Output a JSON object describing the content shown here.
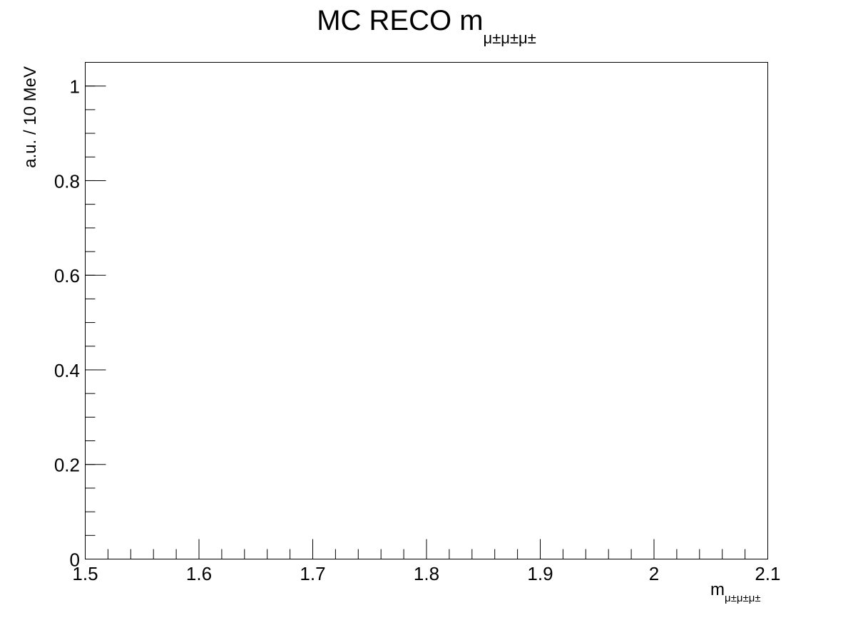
{
  "chart_data": {
    "type": "bar",
    "title": "MC RECO m",
    "title_subscript": "μ±μ±μ±",
    "xlabel": "m",
    "xlabel_subscript": "μ±μ±μ±",
    "ylabel": "a.u. / 10 MeV",
    "xlim": [
      1.5,
      2.1
    ],
    "ylim": [
      0,
      1.05
    ],
    "x_ticks": [
      {
        "value": 1.5,
        "label": "1.5"
      },
      {
        "value": 1.6,
        "label": "1.6"
      },
      {
        "value": 1.7,
        "label": "1.7"
      },
      {
        "value": 1.8,
        "label": "1.8"
      },
      {
        "value": 1.9,
        "label": "1.9"
      },
      {
        "value": 2.0,
        "label": "2"
      },
      {
        "value": 2.1,
        "label": "2.1"
      }
    ],
    "y_ticks": [
      {
        "value": 0,
        "label": "0"
      },
      {
        "value": 0.2,
        "label": "0.2"
      },
      {
        "value": 0.4,
        "label": "0.4"
      },
      {
        "value": 0.6,
        "label": "0.6"
      },
      {
        "value": 0.8,
        "label": "0.8"
      },
      {
        "value": 1.0,
        "label": "1"
      }
    ],
    "x_minor_step": 0.02,
    "y_minor_step": 0.05,
    "grid": false,
    "legend": "none",
    "series": []
  }
}
